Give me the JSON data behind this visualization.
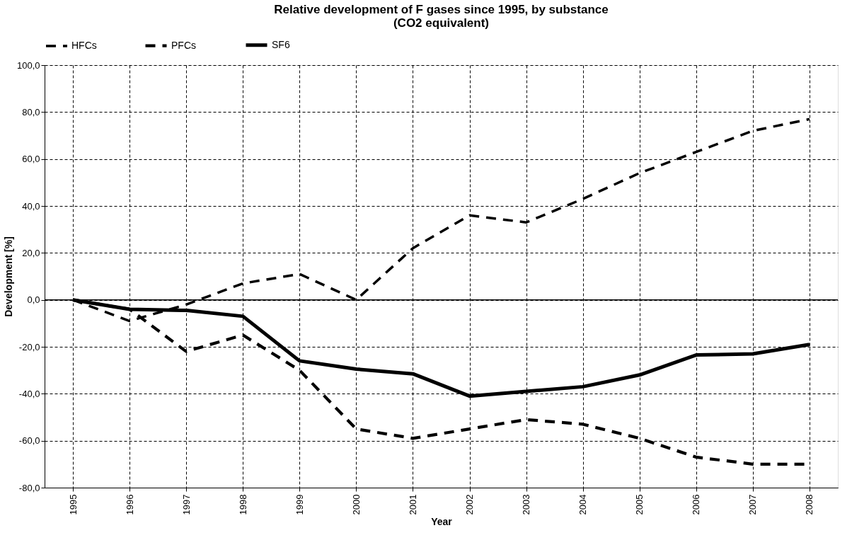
{
  "chart_data": {
    "type": "line",
    "title": "Relative development of F gases since 1995, by substance (CO2 equivalent)",
    "xlabel": "Year",
    "ylabel": "Development [%]",
    "categories": [
      "1995",
      "1996",
      "1997",
      "1998",
      "1999",
      "2000",
      "2001",
      "2002",
      "2003",
      "2004",
      "2005",
      "2006",
      "2007",
      "2008"
    ],
    "series": [
      {
        "name": "HFCs",
        "color": "#000000",
        "line_style": "dashed",
        "values": [
          0,
          -9,
          -2,
          7,
          11,
          0,
          22,
          36,
          33,
          43,
          54,
          63,
          72,
          77
        ]
      },
      {
        "name": "PFCs",
        "color": "#000000",
        "line_style": "dashed",
        "values": [
          0,
          -4,
          -22,
          -15,
          -30,
          -55,
          -59,
          -55,
          -51,
          -53,
          -59,
          -67,
          -70,
          -70
        ]
      },
      {
        "name": "SF6",
        "color": "#000000",
        "line_style": "solid",
        "values": [
          0,
          -4,
          -4.5,
          -7,
          -26,
          -29.5,
          -31.5,
          -41,
          -39,
          -37,
          -32,
          -23.5,
          -23,
          -19
        ]
      }
    ],
    "ylim": [
      -80,
      100
    ],
    "yticks": [
      {
        "value": -80,
        "label": "-80,0"
      },
      {
        "value": -60,
        "label": "-60,0"
      },
      {
        "value": -40,
        "label": "-40,0"
      },
      {
        "value": -20,
        "label": "-20,0"
      },
      {
        "value": 0,
        "label": "0,0"
      },
      {
        "value": 20,
        "label": "20,0"
      },
      {
        "value": 40,
        "label": "40,0"
      },
      {
        "value": 60,
        "label": "60,0"
      },
      {
        "value": 80,
        "label": "80,0"
      },
      {
        "value": 100,
        "label": "100,0"
      }
    ],
    "ref_lines": [
      {
        "axis": "y",
        "value": 0,
        "color": "#000000",
        "line_style": "solid"
      }
    ],
    "grid": true,
    "legend": "top",
    "marker": "none"
  }
}
